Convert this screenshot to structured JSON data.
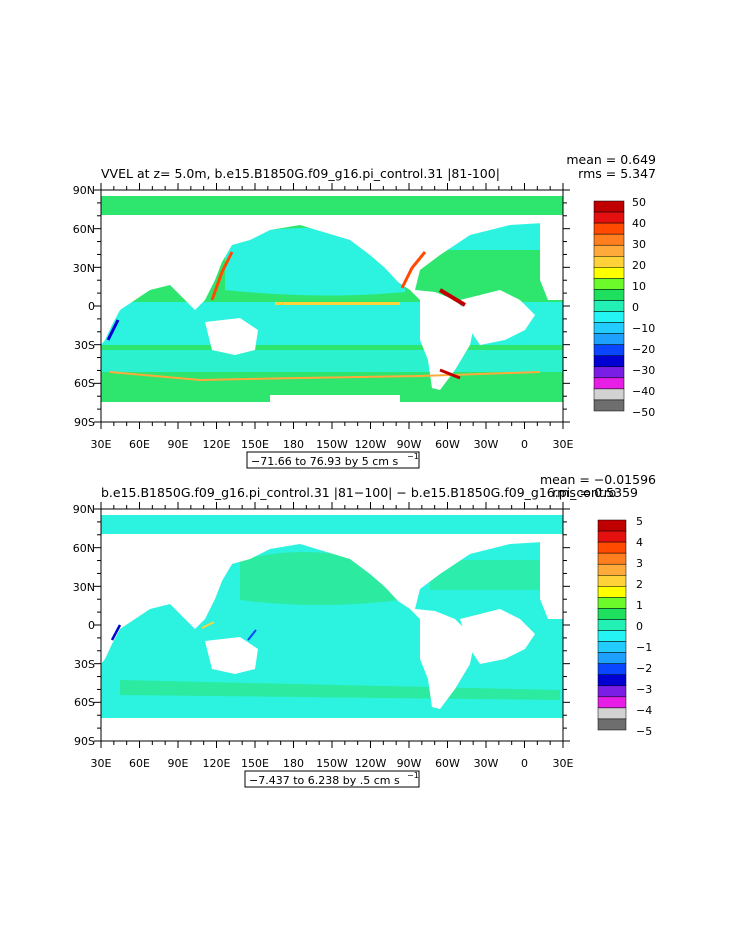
{
  "panels": [
    {
      "title_left": "VVEL at z=    5.0m, b.e15.B1850G.f09_g16.pi_control.31  |81-100|",
      "stat_mean": "mean = 0.649",
      "stat_rms": "rms = 5.347",
      "range_label": "−71.66 to 76.93 by 5 cm s",
      "range_sup": "−1",
      "colorbar_labels": [
        "50",
        "40",
        "30",
        "20",
        "10",
        "0",
        "−10",
        "−20",
        "−30",
        "−40",
        "−50"
      ]
    },
    {
      "title_left": "b.e15.B1850G.f09_g16.pi_control.31  |81−100|  −  b.e15.B1850G.f09_g16.pi_contro",
      "stat_mean": "mean = −0.01596",
      "stat_rms": "rms = 0.5359",
      "range_label": "−7.437 to 6.238 by .5 cm s",
      "range_sup": "−1",
      "colorbar_labels": [
        "5",
        "4",
        "3",
        "2",
        "1",
        "0",
        "−1",
        "−2",
        "−3",
        "−4",
        "−5"
      ]
    }
  ],
  "lat_labels": [
    "90N",
    "60N",
    "30N",
    "0",
    "30S",
    "60S",
    "90S"
  ],
  "lon_labels": [
    "30E",
    "60E",
    "90E",
    "120E",
    "150E",
    "180",
    "150W",
    "120W",
    "90W",
    "60W",
    "30W",
    "0",
    "30E"
  ],
  "colors": {
    "colorbar": [
      "#c00000",
      "#e41010",
      "#ff4a00",
      "#ff7f1e",
      "#ffaa3a",
      "#ffd23a",
      "#ffff00",
      "#6cfa2a",
      "#1ee05e",
      "#22f0b4",
      "#24f4f4",
      "#22ccff",
      "#1ea0ff",
      "#0a46ff",
      "#0000d2",
      "#7a1ee6",
      "#e61ee6",
      "#d2d2d2",
      "#6e6e6e"
    ],
    "ocean_green": "#2ee66e",
    "ocean_cyan": "#2cf2e0",
    "land": "#ffffff"
  }
}
